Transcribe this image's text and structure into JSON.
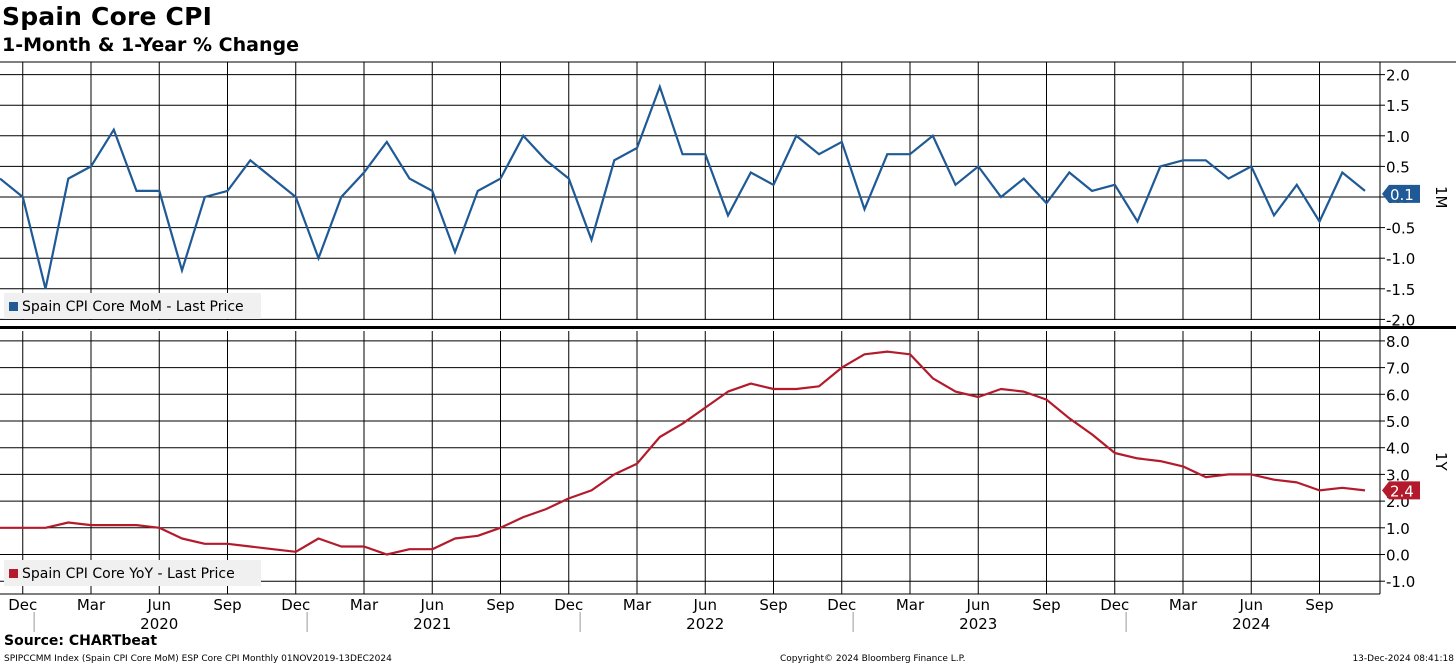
{
  "header": {
    "title": "Spain Core CPI",
    "subtitle": "1-Month & 1-Year % Change"
  },
  "footer": {
    "source": "Source: CHARTbeat",
    "left": "SPIPCCMM Index (Spain CPI Core MoM) ESP Core CPI  Monthly 01NOV2019-13DEC2024",
    "center": "Copyright© 2024 Bloomberg Finance L.P.",
    "right": "13-Dec-2024 08:41:18"
  },
  "colors": {
    "mom": "#1f5a96",
    "yoy": "#b31b2c",
    "grid": "#000000"
  },
  "chart_data": [
    {
      "type": "line",
      "panel_label": "1M",
      "ylim": [
        -2.0,
        2.0
      ],
      "yticks": [
        "2.0",
        "1.5",
        "1.0",
        "0.5",
        "0.0",
        "-0.5",
        "-1.0",
        "-1.5",
        "-2.0"
      ],
      "grid": true,
      "legend_position": "bottom-left",
      "last_value_label": "0.1",
      "series": [
        {
          "name": "Spain CPI Core MoM - Last Price",
          "x": [
            "2019-11",
            "2019-12",
            "2020-01",
            "2020-02",
            "2020-03",
            "2020-04",
            "2020-05",
            "2020-06",
            "2020-07",
            "2020-08",
            "2020-09",
            "2020-10",
            "2020-11",
            "2020-12",
            "2021-01",
            "2021-02",
            "2021-03",
            "2021-04",
            "2021-05",
            "2021-06",
            "2021-07",
            "2021-08",
            "2021-09",
            "2021-10",
            "2021-11",
            "2021-12",
            "2022-01",
            "2022-02",
            "2022-03",
            "2022-04",
            "2022-05",
            "2022-06",
            "2022-07",
            "2022-08",
            "2022-09",
            "2022-10",
            "2022-11",
            "2022-12",
            "2023-01",
            "2023-02",
            "2023-03",
            "2023-04",
            "2023-05",
            "2023-06",
            "2023-07",
            "2023-08",
            "2023-09",
            "2023-10",
            "2023-11",
            "2023-12",
            "2024-01",
            "2024-02",
            "2024-03",
            "2024-04",
            "2024-05",
            "2024-06",
            "2024-07",
            "2024-08",
            "2024-09",
            "2024-10",
            "2024-11"
          ],
          "values": [
            0.3,
            0.0,
            -1.5,
            0.3,
            0.5,
            1.1,
            0.1,
            0.1,
            -1.2,
            0.0,
            0.1,
            0.6,
            0.3,
            0.0,
            -1.0,
            0.0,
            0.4,
            0.9,
            0.3,
            0.1,
            -0.9,
            0.1,
            0.3,
            1.0,
            0.6,
            0.3,
            -0.7,
            0.6,
            0.8,
            1.8,
            0.7,
            0.7,
            -0.3,
            0.4,
            0.2,
            1.0,
            0.7,
            0.9,
            -0.2,
            0.7,
            0.7,
            1.0,
            0.2,
            0.5,
            0.0,
            0.3,
            -0.1,
            0.4,
            0.1,
            0.2,
            -0.4,
            0.5,
            0.6,
            0.6,
            0.3,
            0.5,
            -0.3,
            0.2,
            -0.4,
            0.4,
            0.1
          ]
        }
      ]
    },
    {
      "type": "line",
      "panel_label": "1Y",
      "ylim": [
        -1.0,
        8.0
      ],
      "yticks": [
        "8.0",
        "7.0",
        "6.0",
        "5.0",
        "4.0",
        "3.0",
        "2.0",
        "1.0",
        "0.0",
        "-1.0"
      ],
      "grid": true,
      "legend_position": "bottom-left",
      "last_value_label": "2.4",
      "series": [
        {
          "name": "Spain CPI Core YoY - Last Price",
          "x": [
            "2019-11",
            "2019-12",
            "2020-01",
            "2020-02",
            "2020-03",
            "2020-04",
            "2020-05",
            "2020-06",
            "2020-07",
            "2020-08",
            "2020-09",
            "2020-10",
            "2020-11",
            "2020-12",
            "2021-01",
            "2021-02",
            "2021-03",
            "2021-04",
            "2021-05",
            "2021-06",
            "2021-07",
            "2021-08",
            "2021-09",
            "2021-10",
            "2021-11",
            "2021-12",
            "2022-01",
            "2022-02",
            "2022-03",
            "2022-04",
            "2022-05",
            "2022-06",
            "2022-07",
            "2022-08",
            "2022-09",
            "2022-10",
            "2022-11",
            "2022-12",
            "2023-01",
            "2023-02",
            "2023-03",
            "2023-04",
            "2023-05",
            "2023-06",
            "2023-07",
            "2023-08",
            "2023-09",
            "2023-10",
            "2023-11",
            "2023-12",
            "2024-01",
            "2024-02",
            "2024-03",
            "2024-04",
            "2024-05",
            "2024-06",
            "2024-07",
            "2024-08",
            "2024-09",
            "2024-10",
            "2024-11"
          ],
          "values": [
            1.0,
            1.0,
            1.0,
            1.2,
            1.1,
            1.1,
            1.1,
            1.0,
            0.6,
            0.4,
            0.4,
            0.3,
            0.2,
            0.1,
            0.6,
            0.3,
            0.3,
            0.0,
            0.2,
            0.2,
            0.6,
            0.7,
            1.0,
            1.4,
            1.7,
            2.1,
            2.4,
            3.0,
            3.4,
            4.4,
            4.9,
            5.5,
            6.1,
            6.4,
            6.2,
            6.2,
            6.3,
            7.0,
            7.5,
            7.6,
            7.5,
            6.6,
            6.1,
            5.9,
            6.2,
            6.1,
            5.8,
            5.1,
            4.5,
            3.8,
            3.6,
            3.5,
            3.3,
            2.9,
            3.0,
            3.0,
            2.8,
            2.7,
            2.4,
            2.5,
            2.4
          ]
        }
      ]
    }
  ],
  "x_axis": {
    "month_ticks": [
      {
        "date": "2019-12",
        "label": "Dec"
      },
      {
        "date": "2020-03",
        "label": "Mar"
      },
      {
        "date": "2020-06",
        "label": "Jun"
      },
      {
        "date": "2020-09",
        "label": "Sep"
      },
      {
        "date": "2020-12",
        "label": "Dec"
      },
      {
        "date": "2021-03",
        "label": "Mar"
      },
      {
        "date": "2021-06",
        "label": "Jun"
      },
      {
        "date": "2021-09",
        "label": "Sep"
      },
      {
        "date": "2021-12",
        "label": "Dec"
      },
      {
        "date": "2022-03",
        "label": "Mar"
      },
      {
        "date": "2022-06",
        "label": "Jun"
      },
      {
        "date": "2022-09",
        "label": "Sep"
      },
      {
        "date": "2022-12",
        "label": "Dec"
      },
      {
        "date": "2023-03",
        "label": "Mar"
      },
      {
        "date": "2023-06",
        "label": "Jun"
      },
      {
        "date": "2023-09",
        "label": "Sep"
      },
      {
        "date": "2023-12",
        "label": "Dec"
      },
      {
        "date": "2024-03",
        "label": "Mar"
      },
      {
        "date": "2024-06",
        "label": "Jun"
      },
      {
        "date": "2024-09",
        "label": "Sep"
      }
    ],
    "years": [
      "2020",
      "2021",
      "2022",
      "2023",
      "2024"
    ]
  }
}
